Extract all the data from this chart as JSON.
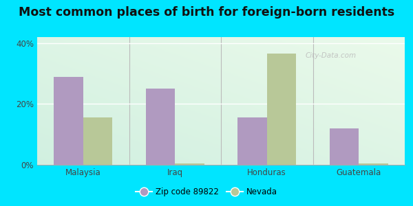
{
  "title": "Most common places of birth for foreign-born residents",
  "categories": [
    "Malaysia",
    "Iraq",
    "Honduras",
    "Guatemala"
  ],
  "zip_values": [
    0.29,
    0.25,
    0.155,
    0.12
  ],
  "nevada_values": [
    0.155,
    0.005,
    0.365,
    0.005
  ],
  "zip_color": "#b09ac0",
  "nevada_color": "#b8c898",
  "outer_bg": "#00e5ff",
  "ylim": [
    0,
    0.42
  ],
  "yticks": [
    0.0,
    0.2,
    0.4
  ],
  "ytick_labels": [
    "0%",
    "20%",
    "40%"
  ],
  "legend_label_zip": "Zip code 89822",
  "legend_label_nevada": "Nevada",
  "bar_width": 0.32,
  "title_fontsize": 12.5,
  "watermark_text": "City-Data.com"
}
